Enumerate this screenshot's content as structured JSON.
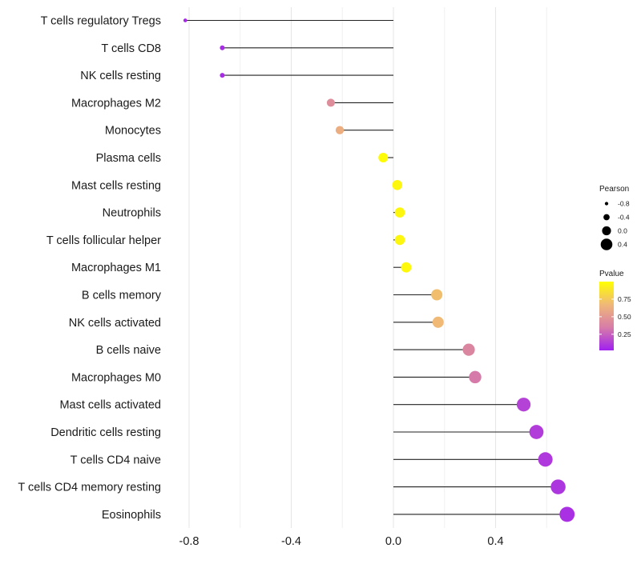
{
  "chart_data": {
    "type": "lollipop",
    "title": "",
    "xlabel": "",
    "ylabel": "",
    "xlim": [
      -0.87,
      0.78
    ],
    "xticks": [
      -0.8,
      -0.4,
      0.0,
      0.4
    ],
    "xtick_labels": [
      "-0.8",
      "-0.4",
      "0.0",
      "0.4"
    ],
    "minor_gridlines": [
      -0.6,
      -0.2,
      0.2,
      0.6
    ],
    "categories": [
      "T cells regulatory  Tregs",
      "T cells CD8",
      "NK cells resting",
      "Macrophages M2",
      "Monocytes",
      "Plasma cells",
      "Mast cells resting",
      "Neutrophils",
      "T cells follicular helper",
      "Macrophages M1",
      "B cells memory",
      "NK cells activated",
      "B cells naive",
      "Macrophages M0",
      "Mast cells activated",
      "Dendritic cells resting",
      "T cells CD4 naive",
      "T cells CD4 memory resting",
      "Eosinophils"
    ],
    "pearson": [
      -0.815,
      -0.67,
      -0.67,
      -0.245,
      -0.21,
      -0.04,
      0.015,
      0.025,
      0.025,
      0.05,
      0.17,
      0.175,
      0.295,
      0.32,
      0.51,
      0.56,
      0.595,
      0.645,
      0.68
    ],
    "pvalue": [
      0.05,
      0.06,
      0.06,
      0.44,
      0.62,
      0.98,
      0.96,
      0.96,
      0.96,
      0.97,
      0.7,
      0.68,
      0.4,
      0.34,
      0.14,
      0.12,
      0.11,
      0.1,
      0.08
    ],
    "legend_pearson": {
      "title": "Pearson",
      "values": [
        -0.8,
        -0.4,
        0.0,
        0.4
      ],
      "labels": [
        "-0.8",
        "-0.4",
        "0.0",
        "0.4"
      ]
    },
    "legend_pvalue": {
      "title": "Pvalue",
      "ticks": [
        0.25,
        0.5,
        0.75
      ],
      "tick_labels": [
        "0.25",
        "0.50",
        "0.75"
      ],
      "range": [
        0.02,
        1.0
      ],
      "colors": [
        "#a020f0",
        "#d77ca8",
        "#f0b878",
        "#ffff00"
      ]
    },
    "legend_position": "right"
  }
}
